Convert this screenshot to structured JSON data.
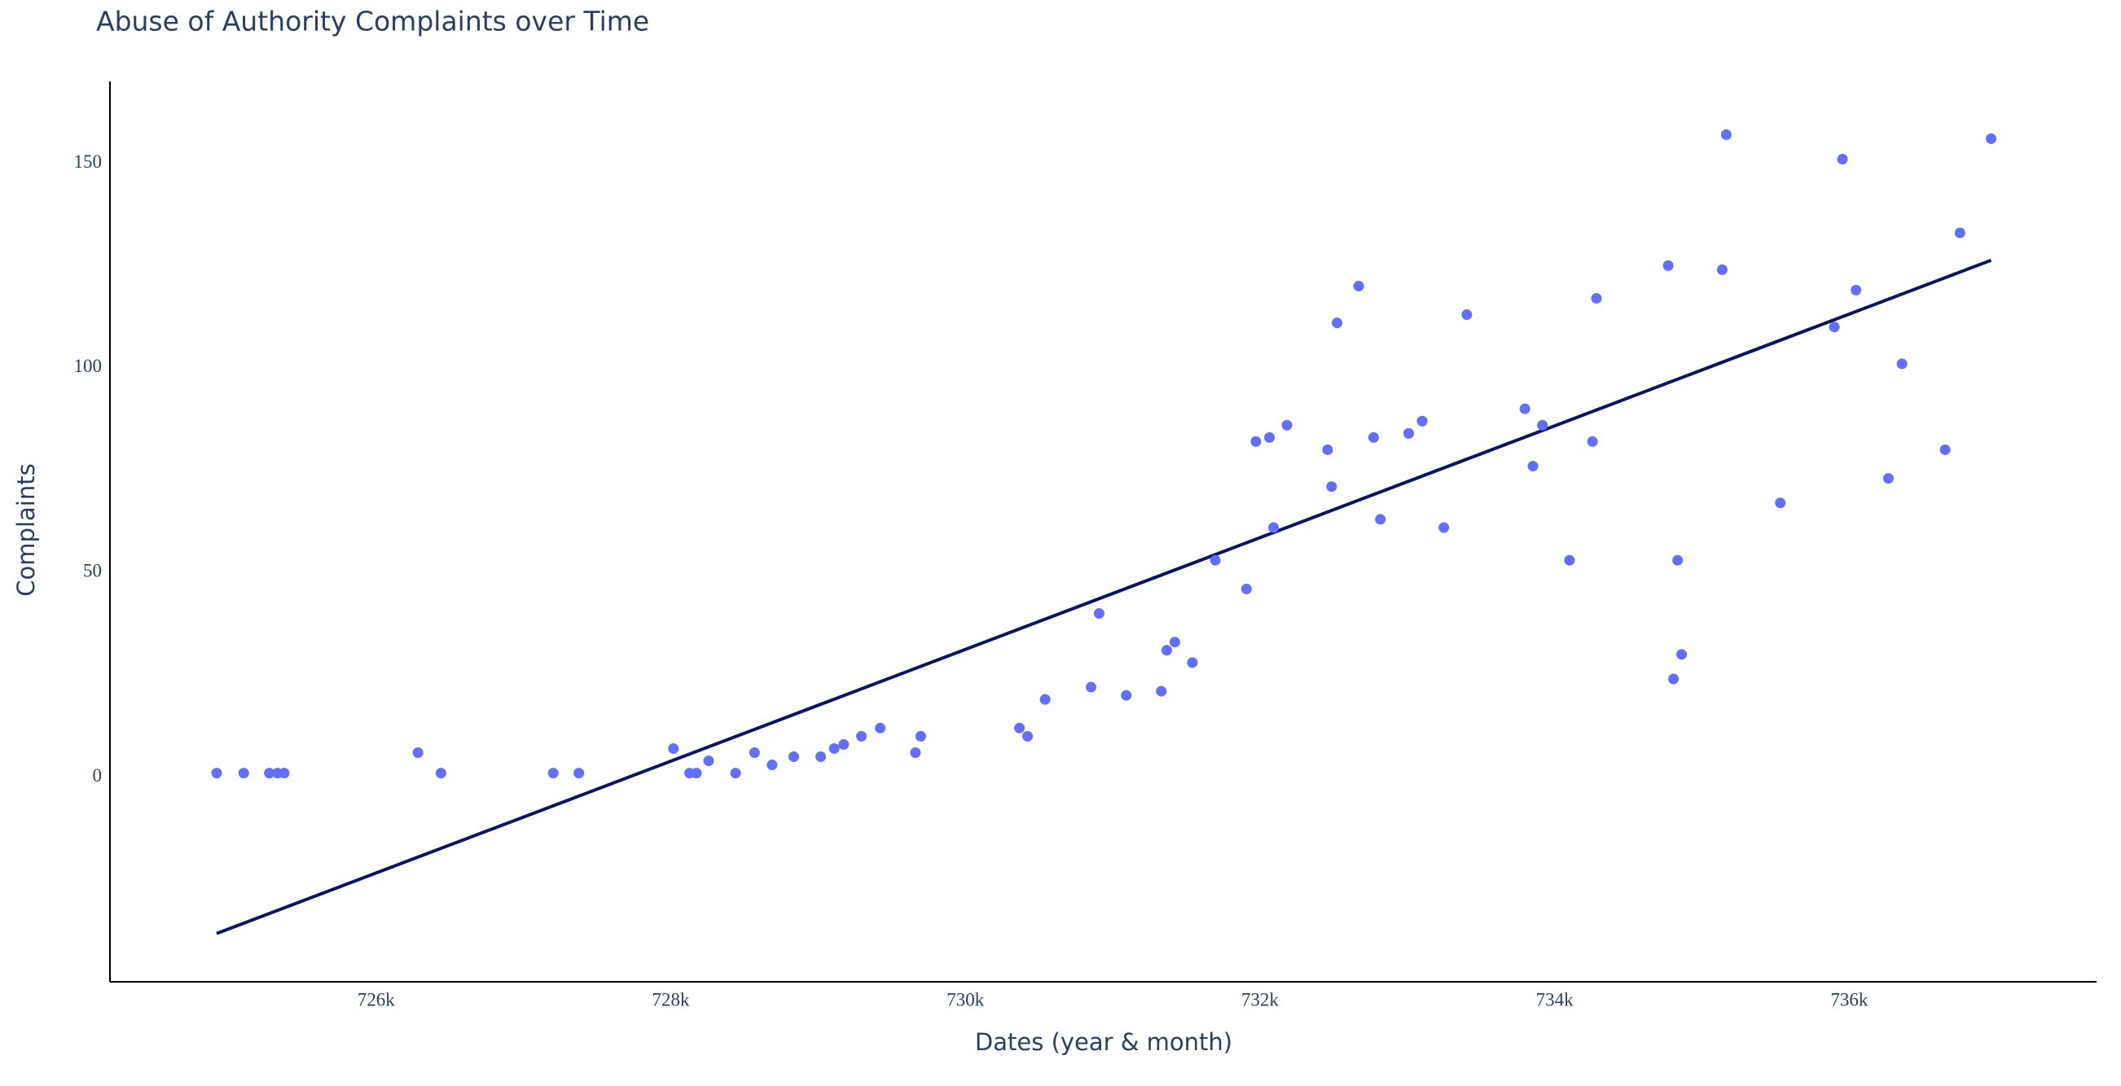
{
  "chart_data": {
    "type": "scatter",
    "title": "Abuse of Authority Complaints over Time",
    "x_label": "Dates (year & month)",
    "y_label": "Complaints",
    "xlim": [
      724193,
      737679
    ],
    "ylim": [
      -50,
      170
    ],
    "xticks": [
      {
        "value": 726000,
        "label": "726k"
      },
      {
        "value": 728000,
        "label": "728k"
      },
      {
        "value": 730000,
        "label": "730k"
      },
      {
        "value": 732000,
        "label": "732k"
      },
      {
        "value": 734000,
        "label": "734k"
      },
      {
        "value": 736000,
        "label": "736k"
      }
    ],
    "yticks": [
      0,
      50,
      100,
      150
    ],
    "grid": false,
    "series": [
      {
        "color": "#636efa",
        "x": [
          724917,
          725101,
          725275,
          725330,
          725376,
          726284,
          726440,
          727202,
          727376,
          728018,
          728128,
          728174,
          728257,
          728440,
          728569,
          728688,
          728835,
          729018,
          729110,
          729174,
          729294,
          729422,
          729661,
          729697,
          730367,
          730422,
          730541,
          730853,
          730908,
          731092,
          731330,
          731367,
          731422,
          731541,
          731697,
          731908,
          731972,
          732064,
          732092,
          732183,
          732459,
          732486,
          732523,
          732670,
          732771,
          732817,
          733009,
          733101,
          733248,
          733404,
          733798,
          733853,
          733917,
          734101,
          734257,
          734284,
          734771,
          734807,
          734835,
          734862,
          735138,
          735165,
          735532,
          735899,
          735954,
          736046,
          736266,
          736358,
          736651,
          736752,
          736963
        ],
        "values": [
          1,
          1,
          1,
          1,
          1,
          6,
          1,
          1,
          1,
          7,
          1,
          1,
          4,
          1,
          6,
          3,
          5,
          5,
          7,
          8,
          10,
          12,
          6,
          10,
          12,
          10,
          19,
          22,
          40,
          20,
          21,
          31,
          33,
          28,
          53,
          46,
          82,
          83,
          61,
          86,
          80,
          71,
          111,
          120,
          83,
          63,
          84,
          87,
          61,
          113,
          90,
          76,
          86,
          53,
          82,
          117,
          125,
          24,
          53,
          30,
          124,
          157,
          67,
          110,
          151,
          119,
          73,
          101,
          80,
          133,
          156
        ]
      }
    ],
    "trendline": {
      "color": "#0b1460",
      "x": [
        724917,
        736963
      ],
      "values": [
        -38.2,
        126.3
      ]
    }
  }
}
